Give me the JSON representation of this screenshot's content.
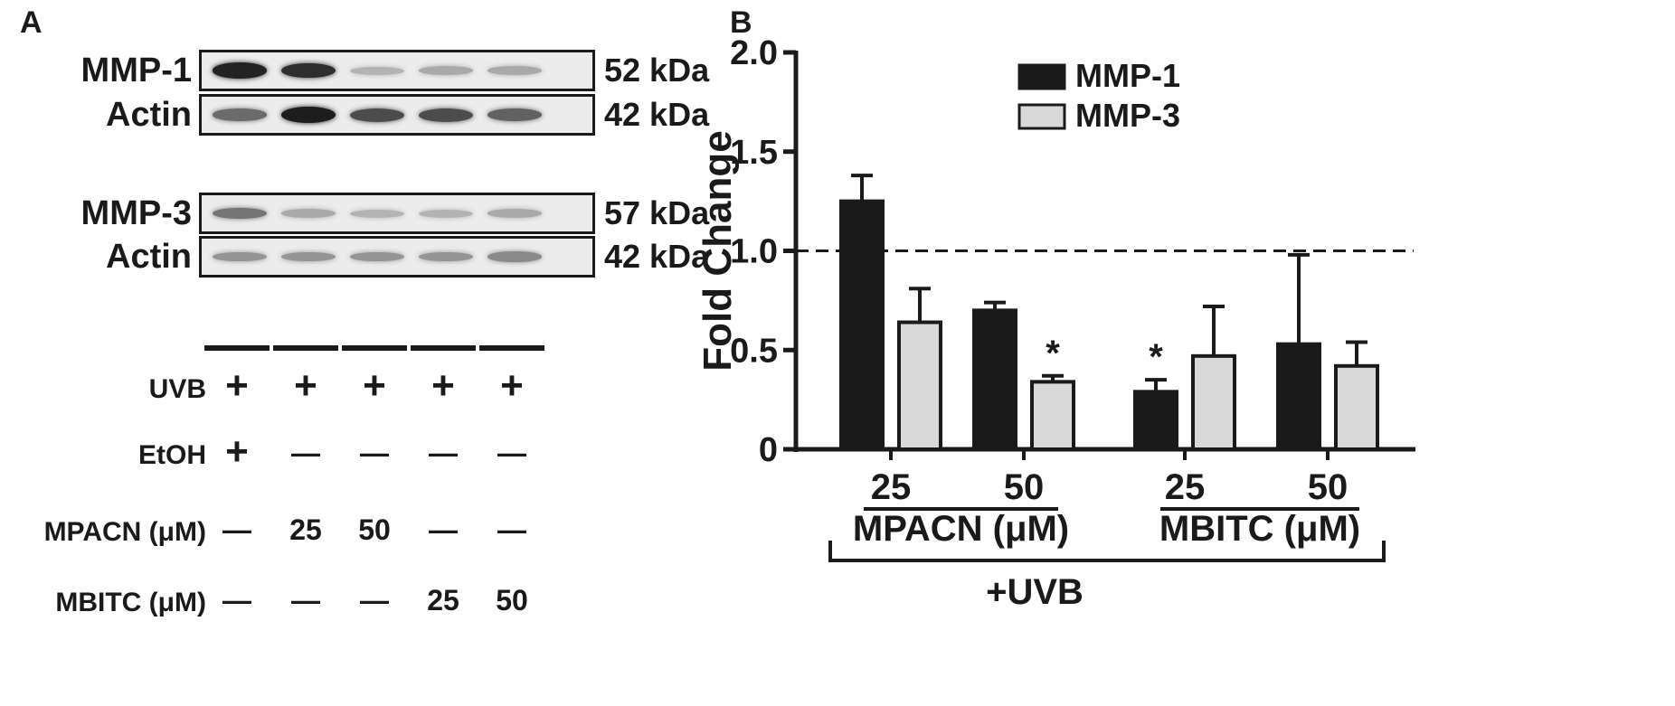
{
  "panel_a": {
    "letter": "A",
    "blots": [
      {
        "label": "MMP-1",
        "kda": "52 kDa",
        "intensities": [
          0.95,
          0.9,
          0.25,
          0.3,
          0.3
        ]
      },
      {
        "label": "Actin",
        "kda": "42 kDa",
        "intensities": [
          0.6,
          0.98,
          0.75,
          0.75,
          0.65
        ]
      },
      {
        "label": "MMP-3",
        "kda": "57 kDa",
        "intensities": [
          0.55,
          0.3,
          0.25,
          0.25,
          0.3
        ]
      },
      {
        "label": "Actin",
        "kda": "42 kDa",
        "intensities": [
          0.4,
          0.4,
          0.4,
          0.4,
          0.45
        ]
      }
    ],
    "conditions": [
      {
        "label": "UVB",
        "cells": [
          "+",
          "+",
          "+",
          "+",
          "+"
        ]
      },
      {
        "label": "EtOH",
        "cells": [
          "+",
          "—",
          "—",
          "—",
          "—"
        ]
      },
      {
        "label": "MPACN (μM)",
        "cells": [
          "—",
          "25",
          "50",
          "—",
          "—"
        ]
      },
      {
        "label": "MBITC (μM)",
        "cells": [
          "—",
          "—",
          "—",
          "25",
          "50"
        ]
      }
    ]
  },
  "panel_b": {
    "letter": "B"
  },
  "chart_data": {
    "type": "bar",
    "title": "",
    "ylabel": "Fold Change",
    "xlabel": "+UVB",
    "ylim": [
      0,
      2.0
    ],
    "yticks": [
      "0",
      "0.5",
      "1.0",
      "1.5",
      "2.0"
    ],
    "reference_line": 1.0,
    "categories": [
      "25",
      "50",
      "25",
      "50"
    ],
    "groups": [
      {
        "label": "MPACN (μM)",
        "categories": [
          0,
          1
        ]
      },
      {
        "label": "MBITC (μM)",
        "categories": [
          2,
          3
        ]
      }
    ],
    "series": [
      {
        "name": "MMP-1",
        "color": "#1a1a1a",
        "values": [
          1.25,
          0.7,
          0.29,
          0.53
        ],
        "errors": [
          0.13,
          0.04,
          0.06,
          0.45
        ],
        "significant": [
          false,
          false,
          true,
          false
        ]
      },
      {
        "name": "MMP-3",
        "color": "#d9d9d9",
        "values": [
          0.64,
          0.34,
          0.47,
          0.42
        ],
        "errors": [
          0.17,
          0.03,
          0.25,
          0.12
        ],
        "significant": [
          false,
          true,
          false,
          false
        ]
      }
    ],
    "significance_marker": "*",
    "legend_position": "top-right"
  }
}
